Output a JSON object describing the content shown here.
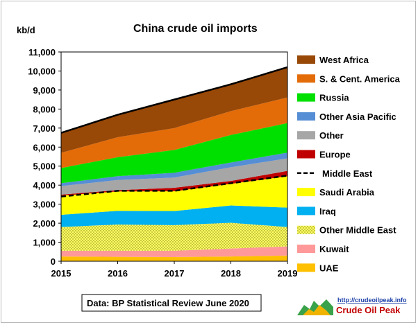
{
  "chart_data": {
    "type": "area",
    "title": "China crude oil imports",
    "ylabel": "kb/d",
    "xlabel": "",
    "x": [
      2015,
      2016,
      2017,
      2018,
      2019
    ],
    "ylim": [
      0,
      11000
    ],
    "yticks": [
      0,
      1000,
      2000,
      3000,
      4000,
      5000,
      6000,
      7000,
      8000,
      9000,
      10000,
      11000
    ],
    "ytick_labels": [
      "0",
      "1,000",
      "2,000",
      "3,000",
      "4,000",
      "5,000",
      "6,000",
      "7,000",
      "8,000",
      "9,000",
      "10,000",
      "11,000"
    ],
    "grid": false,
    "legend_position": "right",
    "series": [
      {
        "name": "UAE",
        "color": "#FFC000",
        "values": [
          250,
          230,
          220,
          250,
          300
        ]
      },
      {
        "name": "Kuwait",
        "color": "#FF9999",
        "values": [
          300,
          320,
          330,
          420,
          480
        ]
      },
      {
        "name": "Other Middle East",
        "color": "#FFFF66",
        "pattern": "dots",
        "values": [
          1250,
          1380,
          1350,
          1350,
          1020
        ]
      },
      {
        "name": "Iraq",
        "color": "#00B0F0",
        "values": [
          640,
          720,
          740,
          910,
          1020
        ]
      },
      {
        "name": "Saudi Arabia",
        "color": "#FFFF00",
        "values": [
          1010,
          1020,
          1040,
          1140,
          1650
        ]
      },
      {
        "name": "Europe",
        "color": "#C00000",
        "values": [
          50,
          70,
          180,
          150,
          280
        ]
      },
      {
        "name": "Other",
        "color": "#A6A6A6",
        "values": [
          450,
          530,
          540,
          720,
          660
        ]
      },
      {
        "name": "Other Asia Pacific",
        "color": "#558ED5",
        "values": [
          150,
          200,
          250,
          250,
          300
        ]
      },
      {
        "name": "Russia",
        "color": "#00E000",
        "values": [
          800,
          1000,
          1200,
          1450,
          1550
        ]
      },
      {
        "name": "S. & Cent. America",
        "color": "#E36C09",
        "values": [
          800,
          1050,
          1150,
          1250,
          1350
        ]
      },
      {
        "name": "West Africa",
        "color": "#984807",
        "values": [
          1050,
          1170,
          1480,
          1460,
          1600
        ]
      }
    ],
    "middle_east_line": {
      "name": "Middle East",
      "values": [
        3400,
        3700,
        3700,
        4100,
        4500
      ]
    },
    "total_line": {
      "values": [
        6750,
        7700,
        8500,
        9300,
        10200
      ]
    }
  },
  "source_note": "Data: BP Statistical Review June 2020",
  "logo": {
    "url": "http://crudeoilpeak.info",
    "name": "Crude Oil Peak"
  }
}
